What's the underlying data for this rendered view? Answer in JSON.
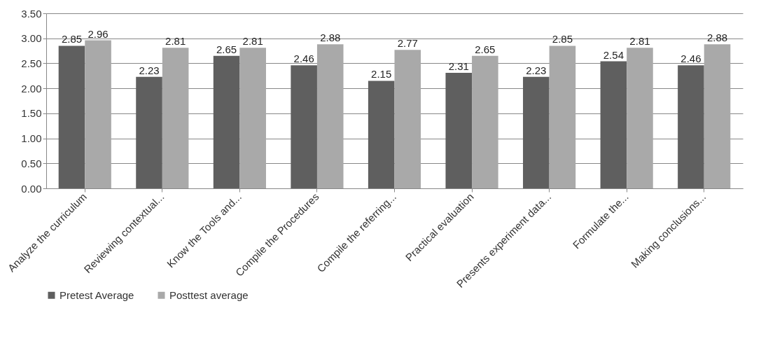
{
  "chart_data": {
    "type": "bar",
    "categories": [
      "Analyze the curriculum",
      "Reviewing contextual...",
      "Know the Tools and...",
      "Compile the Procedures",
      "Compile the referring...",
      "Practical evaluation",
      "Presents experiment data...",
      "Formulate the...",
      "Making conclusions..."
    ],
    "series": [
      {
        "name": "Pretest Average",
        "color": "#5f5f5f",
        "values": [
          2.85,
          2.23,
          2.65,
          2.46,
          2.15,
          2.31,
          2.23,
          2.54,
          2.46
        ]
      },
      {
        "name": "Posttest average",
        "color": "#a9a9a9",
        "values": [
          2.96,
          2.81,
          2.81,
          2.88,
          2.77,
          2.65,
          2.85,
          2.81,
          2.88
        ]
      }
    ],
    "ylim": [
      0,
      3.5
    ],
    "yticks": [
      {
        "value": 0,
        "label": "0.00"
      },
      {
        "value": 0.5,
        "label": "0.50"
      },
      {
        "value": 1,
        "label": "1.00"
      },
      {
        "value": 1.5,
        "label": "1.50"
      },
      {
        "value": 2,
        "label": "2.00"
      },
      {
        "value": 2.5,
        "label": "2.50"
      },
      {
        "value": 3,
        "label": "3.00"
      },
      {
        "value": 3.5,
        "label": "3.50"
      }
    ],
    "grid": "y",
    "legend": "bottom",
    "data_labels": true
  }
}
